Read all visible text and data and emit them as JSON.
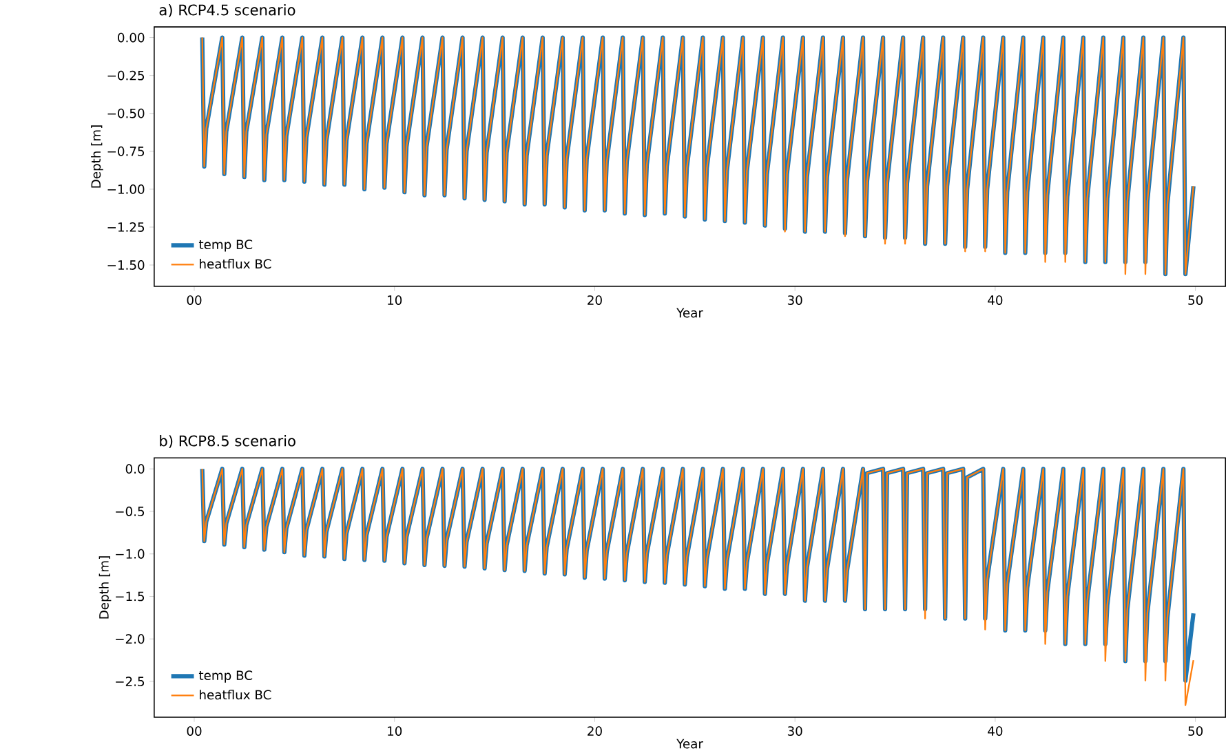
{
  "chart_data": [
    {
      "type": "line",
      "title": "a) RCP4.5 scenario",
      "xlabel": "Year",
      "ylabel": "Depth [m]",
      "legend": "bottom left",
      "grid": false,
      "xlim": [
        -2.0,
        51.5
      ],
      "ylim": [
        -1.64,
        0.07
      ],
      "xticks": [
        {
          "value": 0,
          "label": "00"
        },
        10,
        20,
        30,
        40,
        50
      ],
      "yticks": [
        {
          "value": 0,
          "label": "0.00"
        },
        {
          "value": -0.25,
          "label": "−0.25"
        },
        {
          "value": -0.5,
          "label": "−0.50"
        },
        {
          "value": -0.75,
          "label": "−0.75"
        },
        {
          "value": -1.0,
          "label": "−1.00"
        },
        {
          "value": -1.25,
          "label": "−1.25"
        },
        {
          "value": -1.5,
          "label": "−1.50"
        }
      ],
      "x": [
        0.4,
        0.5,
        0.6,
        1.4,
        1.5,
        1.6,
        2.4,
        2.5,
        2.6,
        3.4,
        3.5,
        3.6,
        4.4,
        4.5,
        4.6,
        5.4,
        5.5,
        5.6,
        6.4,
        6.5,
        6.6,
        7.4,
        7.5,
        7.6,
        8.4,
        8.5,
        8.6,
        9.4,
        9.5,
        9.6,
        10.4,
        10.5,
        10.6,
        11.4,
        11.5,
        11.6,
        12.4,
        12.5,
        12.6,
        13.4,
        13.5,
        13.6,
        14.4,
        14.5,
        14.6,
        15.4,
        15.5,
        15.6,
        16.4,
        16.5,
        16.6,
        17.4,
        17.5,
        17.6,
        18.4,
        18.5,
        18.6,
        19.4,
        19.5,
        19.6,
        20.4,
        20.5,
        20.6,
        21.4,
        21.5,
        21.6,
        22.4,
        22.5,
        22.6,
        23.4,
        23.5,
        23.6,
        24.4,
        24.5,
        24.6,
        25.4,
        25.5,
        25.6,
        26.4,
        26.5,
        26.6,
        27.4,
        27.5,
        27.6,
        28.4,
        28.5,
        28.6,
        29.4,
        29.5,
        29.6,
        30.4,
        30.5,
        30.6,
        31.4,
        31.5,
        31.6,
        32.4,
        32.5,
        32.6,
        33.4,
        33.5,
        33.6,
        34.4,
        34.5,
        34.6,
        35.4,
        35.5,
        35.6,
        36.4,
        36.5,
        36.6,
        37.4,
        37.5,
        37.6,
        38.4,
        38.5,
        38.6,
        39.4,
        39.5,
        39.6,
        40.4,
        40.5,
        40.6,
        41.4,
        41.5,
        41.6,
        42.4,
        42.5,
        42.6,
        43.4,
        43.5,
        43.6,
        44.4,
        44.5,
        44.6,
        45.4,
        45.5,
        45.6,
        46.4,
        46.5,
        46.6,
        47.4,
        47.5,
        47.6,
        48.4,
        48.5,
        48.6,
        49.4,
        49.5,
        49.9
      ],
      "series": [
        {
          "name": "temp BC",
          "color": "#1f77b4",
          "values": [
            0,
            -0.85,
            -0.6,
            0,
            -0.9,
            -0.62,
            0,
            -0.92,
            -0.62,
            0,
            -0.94,
            -0.64,
            0,
            -0.94,
            -0.65,
            0,
            -0.95,
            -0.66,
            0,
            -0.97,
            -0.68,
            0,
            -0.97,
            -0.68,
            0,
            -1.0,
            -0.7,
            0,
            -0.99,
            -0.7,
            0,
            -1.02,
            -0.72,
            0,
            -1.04,
            -0.72,
            0,
            -1.04,
            -0.74,
            0,
            -1.06,
            -0.75,
            0,
            -1.07,
            -0.76,
            0,
            -1.08,
            -0.76,
            0,
            -1.1,
            -0.78,
            0,
            -1.1,
            -0.78,
            0,
            -1.12,
            -0.8,
            0,
            -1.14,
            -0.8,
            0,
            -1.14,
            -0.82,
            0,
            -1.16,
            -0.82,
            0,
            -1.17,
            -0.84,
            0,
            -1.16,
            -0.85,
            0,
            -1.18,
            -0.86,
            0,
            -1.2,
            -0.86,
            0,
            -1.21,
            -0.88,
            0,
            -1.22,
            -0.88,
            0,
            -1.24,
            -0.9,
            0,
            -1.26,
            -0.9,
            0,
            -1.28,
            -0.92,
            0,
            -1.28,
            -0.92,
            0,
            -1.29,
            -0.94,
            0,
            -1.31,
            -0.95,
            0,
            -1.32,
            -0.96,
            0,
            -1.32,
            -0.96,
            0,
            -1.36,
            -0.98,
            0,
            -1.36,
            -0.98,
            0,
            -1.38,
            -1.0,
            0,
            -1.38,
            -1.0,
            0,
            -1.42,
            -1.02,
            0,
            -1.42,
            -1.02,
            0,
            -1.42,
            -1.04,
            0,
            -1.42,
            -1.05,
            0,
            -1.48,
            -1.06,
            0,
            -1.48,
            -1.06,
            0,
            -1.48,
            -1.08,
            0,
            -1.48,
            -1.08,
            0,
            -1.56,
            -1.1,
            0,
            -1.56,
            -0.98
          ]
        },
        {
          "name": "heatflux BC",
          "color": "#ff7f0e",
          "values": [
            0,
            -0.85,
            -0.6,
            0,
            -0.9,
            -0.62,
            0,
            -0.92,
            -0.62,
            0,
            -0.94,
            -0.64,
            0,
            -0.94,
            -0.65,
            0,
            -0.95,
            -0.66,
            0,
            -0.97,
            -0.68,
            0,
            -0.97,
            -0.68,
            0,
            -1.0,
            -0.7,
            0,
            -0.99,
            -0.7,
            0,
            -1.02,
            -0.72,
            0,
            -1.04,
            -0.72,
            0,
            -1.04,
            -0.74,
            0,
            -1.06,
            -0.75,
            0,
            -1.07,
            -0.76,
            0,
            -1.08,
            -0.76,
            0,
            -1.1,
            -0.78,
            0,
            -1.1,
            -0.78,
            0,
            -1.12,
            -0.8,
            0,
            -1.14,
            -0.8,
            0,
            -1.14,
            -0.82,
            0,
            -1.16,
            -0.82,
            0,
            -1.17,
            -0.84,
            0,
            -1.16,
            -0.85,
            0,
            -1.18,
            -0.86,
            0,
            -1.2,
            -0.86,
            0,
            -1.21,
            -0.88,
            0,
            -1.22,
            -0.88,
            0,
            -1.24,
            -0.9,
            0,
            -1.28,
            -0.9,
            0,
            -1.28,
            -0.92,
            0,
            -1.28,
            -0.92,
            0,
            -1.31,
            -0.94,
            0,
            -1.31,
            -0.95,
            0,
            -1.36,
            -0.96,
            0,
            -1.36,
            -0.96,
            0,
            -1.36,
            -0.98,
            0,
            -1.36,
            -0.98,
            0,
            -1.41,
            -1.0,
            0,
            -1.41,
            -1.0,
            0,
            -1.42,
            -1.02,
            0,
            -1.42,
            -1.02,
            0,
            -1.48,
            -1.04,
            0,
            -1.48,
            -1.05,
            0,
            -1.48,
            -1.06,
            0,
            -1.48,
            -1.06,
            0,
            -1.56,
            -1.08,
            0,
            -1.56,
            -1.08,
            0,
            -1.56,
            -1.1,
            0,
            -1.56,
            -0.98
          ]
        }
      ]
    },
    {
      "type": "line",
      "title": "b) RCP8.5 scenario",
      "xlabel": "Year",
      "ylabel": "Depth [m]",
      "legend": "bottom left",
      "grid": false,
      "xlim": [
        -2.0,
        51.5
      ],
      "ylim": [
        -2.92,
        0.13
      ],
      "xticks": [
        {
          "value": 0,
          "label": "00"
        },
        10,
        20,
        30,
        40,
        50
      ],
      "yticks": [
        {
          "value": 0,
          "label": "0.0"
        },
        {
          "value": -0.5,
          "label": "−0.5"
        },
        {
          "value": -1.0,
          "label": "−1.0"
        },
        {
          "value": -1.5,
          "label": "−1.5"
        },
        {
          "value": -2.0,
          "label": "−2.0"
        },
        {
          "value": -2.5,
          "label": "−2.5"
        }
      ],
      "x": [
        0.4,
        0.5,
        0.6,
        1.4,
        1.5,
        1.6,
        2.4,
        2.5,
        2.6,
        3.4,
        3.5,
        3.6,
        4.4,
        4.5,
        4.6,
        5.4,
        5.5,
        5.6,
        6.4,
        6.5,
        6.6,
        7.4,
        7.5,
        7.6,
        8.4,
        8.5,
        8.6,
        9.4,
        9.5,
        9.6,
        10.4,
        10.5,
        10.6,
        11.4,
        11.5,
        11.6,
        12.4,
        12.5,
        12.6,
        13.4,
        13.5,
        13.6,
        14.4,
        14.5,
        14.6,
        15.4,
        15.5,
        15.6,
        16.4,
        16.5,
        16.6,
        17.4,
        17.5,
        17.6,
        18.4,
        18.5,
        18.6,
        19.4,
        19.5,
        19.6,
        20.4,
        20.5,
        20.6,
        21.4,
        21.5,
        21.6,
        22.4,
        22.5,
        22.6,
        23.4,
        23.5,
        23.6,
        24.4,
        24.5,
        24.6,
        25.4,
        25.5,
        25.6,
        26.4,
        26.5,
        26.6,
        27.4,
        27.5,
        27.6,
        28.4,
        28.5,
        28.6,
        29.4,
        29.5,
        29.6,
        30.4,
        30.5,
        30.6,
        31.4,
        31.5,
        31.6,
        32.4,
        32.5,
        32.6,
        33.4,
        33.5,
        33.6,
        34.4,
        34.5,
        34.6,
        35.4,
        35.5,
        35.6,
        36.4,
        36.5,
        36.6,
        37.4,
        37.5,
        37.6,
        38.4,
        38.5,
        38.6,
        39.4,
        39.5,
        39.6,
        40.4,
        40.5,
        40.6,
        41.4,
        41.5,
        41.6,
        42.4,
        42.5,
        42.6,
        43.4,
        43.5,
        43.6,
        44.4,
        44.5,
        44.6,
        45.4,
        45.5,
        45.6,
        46.4,
        46.5,
        46.6,
        47.4,
        47.5,
        47.6,
        48.4,
        48.5,
        48.6,
        49.4,
        49.5,
        49.9
      ],
      "series": [
        {
          "name": "temp BC",
          "color": "#1f77b4",
          "values": [
            0,
            -0.85,
            -0.62,
            0,
            -0.89,
            -0.64,
            0,
            -0.92,
            -0.66,
            0,
            -0.95,
            -0.68,
            0,
            -0.98,
            -0.7,
            0,
            -1.02,
            -0.72,
            0,
            -1.03,
            -0.74,
            0,
            -1.06,
            -0.76,
            0,
            -1.07,
            -0.78,
            0,
            -1.08,
            -0.8,
            0,
            -1.11,
            -0.8,
            0,
            -1.13,
            -0.82,
            0,
            -1.14,
            -0.84,
            0,
            -1.15,
            -0.86,
            0,
            -1.17,
            -0.88,
            0,
            -1.19,
            -0.9,
            0,
            -1.2,
            -0.9,
            0,
            -1.23,
            -0.92,
            0,
            -1.24,
            -0.94,
            0,
            -1.28,
            -0.96,
            0,
            -1.29,
            -0.98,
            0,
            -1.31,
            -1.0,
            0,
            -1.33,
            -1.0,
            0,
            -1.34,
            -1.02,
            0,
            -1.36,
            -1.04,
            0,
            -1.38,
            -1.06,
            0,
            -1.41,
            -1.08,
            0,
            -1.41,
            -1.1,
            0,
            -1.47,
            -1.12,
            0,
            -1.47,
            -1.14,
            0,
            -1.55,
            -1.16,
            0,
            -1.55,
            -1.18,
            0,
            -1.55,
            -1.2,
            0,
            -1.65,
            -0.05,
            0,
            -1.65,
            -0.05,
            0,
            -1.65,
            -0.05,
            0,
            -1.65,
            -0.05,
            0,
            -1.76,
            -0.05,
            0,
            -1.76,
            -0.1,
            0,
            -1.76,
            -1.3,
            0,
            -1.9,
            -1.35,
            0,
            -1.9,
            -1.4,
            0,
            -1.9,
            -1.45,
            0,
            -2.06,
            -1.5,
            0,
            -2.06,
            -1.55,
            0,
            -2.06,
            -1.6,
            0,
            -2.26,
            -1.65,
            0,
            -2.26,
            -1.7,
            0,
            -2.26,
            -1.75,
            0,
            -2.49,
            -1.7
          ]
        },
        {
          "name": "heatflux BC",
          "color": "#ff7f0e",
          "values": [
            0,
            -0.85,
            -0.62,
            0,
            -0.89,
            -0.64,
            0,
            -0.92,
            -0.66,
            0,
            -0.95,
            -0.68,
            0,
            -0.98,
            -0.7,
            0,
            -1.02,
            -0.72,
            0,
            -1.03,
            -0.74,
            0,
            -1.06,
            -0.76,
            0,
            -1.07,
            -0.78,
            0,
            -1.08,
            -0.8,
            0,
            -1.11,
            -0.8,
            0,
            -1.13,
            -0.82,
            0,
            -1.14,
            -0.84,
            0,
            -1.15,
            -0.86,
            0,
            -1.17,
            -0.88,
            0,
            -1.19,
            -0.9,
            0,
            -1.2,
            -0.9,
            0,
            -1.23,
            -0.92,
            0,
            -1.24,
            -0.94,
            0,
            -1.28,
            -0.96,
            0,
            -1.29,
            -0.98,
            0,
            -1.31,
            -1.0,
            0,
            -1.33,
            -1.0,
            0,
            -1.34,
            -1.02,
            0,
            -1.36,
            -1.04,
            0,
            -1.38,
            -1.06,
            0,
            -1.41,
            -1.08,
            0,
            -1.41,
            -1.1,
            0,
            -1.47,
            -1.12,
            0,
            -1.47,
            -1.14,
            0,
            -1.55,
            -1.16,
            0,
            -1.55,
            -1.18,
            0,
            -1.55,
            -1.2,
            0,
            -1.65,
            -0.05,
            0,
            -1.65,
            -0.05,
            0,
            -1.65,
            -0.05,
            0,
            -1.76,
            -0.05,
            0,
            -1.76,
            -0.05,
            0,
            -1.76,
            -0.1,
            0,
            -1.89,
            -1.3,
            0,
            -1.9,
            -1.35,
            0,
            -1.9,
            -1.4,
            0,
            -2.06,
            -1.45,
            0,
            -2.06,
            -1.5,
            0,
            -2.06,
            -1.55,
            0,
            -2.26,
            -1.6,
            0,
            -2.26,
            -1.65,
            0,
            -2.49,
            -1.7,
            0,
            -2.49,
            -1.75,
            0,
            -2.78,
            -2.25
          ]
        }
      ]
    }
  ]
}
